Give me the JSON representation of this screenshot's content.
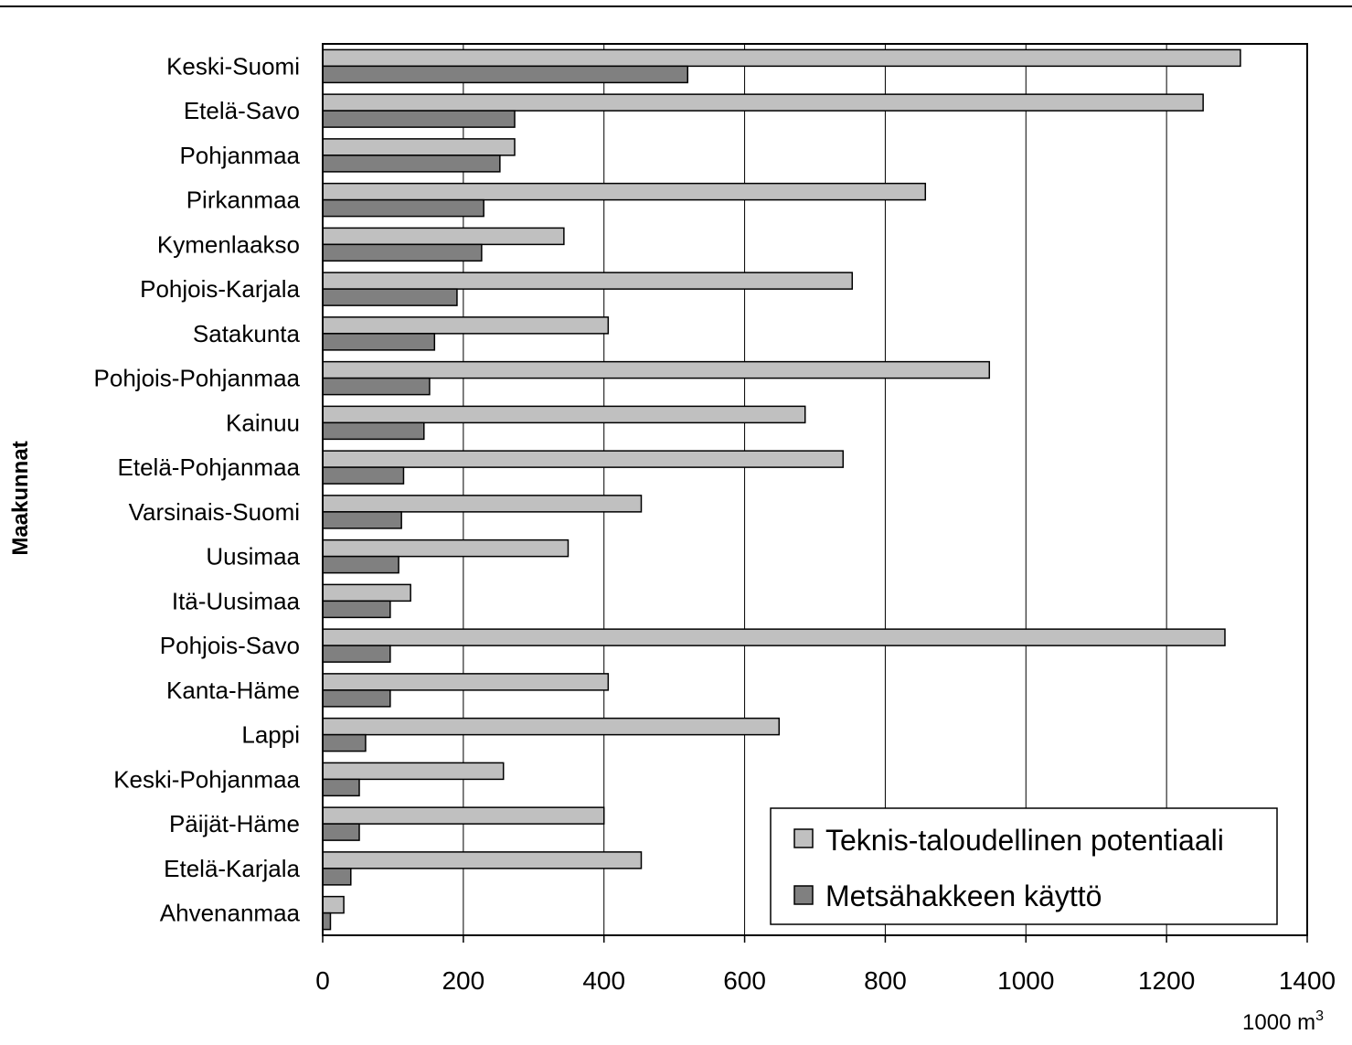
{
  "chart_data": {
    "type": "bar",
    "orientation": "horizontal",
    "title": "",
    "ylabel": "Maakunnat",
    "xlabel_unit": "1000 m",
    "xlabel_unit_superscript": "3",
    "xlim": [
      0,
      1400
    ],
    "xticks": [
      "0",
      "200",
      "400",
      "600",
      "800",
      "1000",
      "1200",
      "1400"
    ],
    "grid": "vertical",
    "legend_position": "bottom-right",
    "categories": [
      "Keski-Suomi",
      "Etelä-Savo",
      "Pohjanmaa",
      "Pirkanmaa",
      "Kymenlaakso",
      "Pohjois-Karjala",
      "Satakunta",
      "Pohjois-Pohjanmaa",
      "Kainuu",
      "Etelä-Pohjanmaa",
      "Varsinais-Suomi",
      "Uusimaa",
      "Itä-Uusimaa",
      "Pohjois-Savo",
      "Kanta-Häme",
      "Lappi",
      "Keski-Pohjanmaa",
      "Päijät-Häme",
      "Etelä-Karjala",
      "Ahvenanmaa"
    ],
    "series": [
      {
        "name": "Teknis-taloudellinen potentiaali",
        "color": "#c0c0c0",
        "values": [
          1305,
          1252,
          273,
          857,
          343,
          753,
          406,
          948,
          686,
          740,
          453,
          349,
          125,
          1283,
          406,
          649,
          257,
          400,
          453,
          30
        ]
      },
      {
        "name": "Metsähakkeen käyttö",
        "color": "#808080",
        "values": [
          519,
          273,
          252,
          229,
          226,
          191,
          159,
          152,
          144,
          115,
          112,
          108,
          96,
          96,
          96,
          61,
          52,
          52,
          40,
          11
        ]
      }
    ]
  }
}
